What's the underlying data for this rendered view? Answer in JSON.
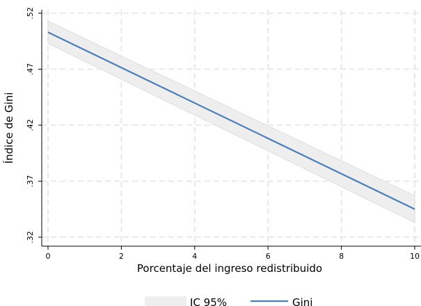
{
  "chart_data": {
    "type": "line",
    "title": "",
    "xlabel": "Porcentaje del ingreso redistribuido",
    "ylabel": "Índice de Gini",
    "xlim": [
      0,
      10
    ],
    "ylim": [
      0.32,
      0.52
    ],
    "x_ticks": [
      0,
      2,
      4,
      6,
      8,
      10
    ],
    "x_tick_labels": [
      "0",
      "2",
      "4",
      "6",
      "8",
      "10"
    ],
    "y_ticks": [
      0.32,
      0.37,
      0.42,
      0.47,
      0.52
    ],
    "y_tick_labels": [
      ".32",
      ".37",
      ".42",
      ".47",
      ".52"
    ],
    "grid": true,
    "legend_position": "bottom",
    "series": [
      {
        "name": "Gini",
        "type": "line",
        "color": "#4a7ebb",
        "x": [
          0,
          10
        ],
        "y": [
          0.503,
          0.345
        ]
      },
      {
        "name": "IC 95%",
        "type": "band",
        "color": "#eeeeee",
        "x": [
          0,
          10
        ],
        "lower": [
          0.493,
          0.333
        ],
        "upper": [
          0.513,
          0.357
        ]
      }
    ],
    "legend": [
      {
        "label": "IC 95%",
        "kind": "band",
        "color": "#eeeeee"
      },
      {
        "label": "Gini",
        "kind": "line",
        "color": "#4a7ebb"
      }
    ]
  }
}
